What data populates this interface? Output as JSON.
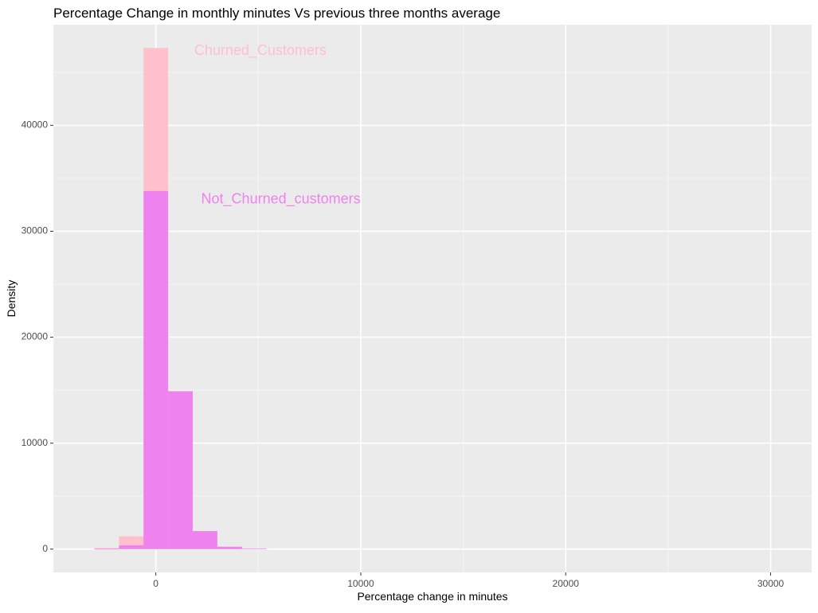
{
  "chart_data": {
    "type": "bar",
    "title": "Percentage Change in monthly minutes Vs previous three months average",
    "xlabel": "Percentage change in minutes",
    "ylabel": "Density",
    "xlim": [
      -5000,
      32000
    ],
    "ylim": [
      -2200,
      49500
    ],
    "x_ticks": [
      0,
      10000,
      20000,
      30000
    ],
    "x_tick_labels": [
      "0",
      "10000",
      "20000",
      "30000"
    ],
    "y_ticks": [
      0,
      10000,
      20000,
      30000,
      40000
    ],
    "y_tick_labels": [
      "0",
      "10000",
      "20000",
      "30000",
      "40000"
    ],
    "grid": true,
    "colors": {
      "panel": "#ebebeb",
      "grid_major": "#ffffff",
      "grid_minor": "#f5f5f5",
      "churned": "#ffc0cb",
      "not_churned": "#ee82ee",
      "axis_text": "#4d4d4d",
      "title": "#000000"
    },
    "series": [
      {
        "name": "Churned_Customers",
        "color": "#ffc0cb",
        "bin_start": [
          -3000,
          -1800,
          -600,
          600,
          1800,
          3000
        ],
        "bin_end": [
          -1800,
          -600,
          600,
          1800,
          3000,
          4200
        ],
        "values": [
          100,
          1200,
          47300,
          14900,
          1700,
          180
        ]
      },
      {
        "name": "Not_Churned_customers",
        "color": "#ee82ee",
        "bin_start": [
          -3000,
          -1800,
          -600,
          600,
          1800,
          3000,
          4200
        ],
        "bin_end": [
          -1800,
          -600,
          600,
          1800,
          3000,
          4200,
          5400
        ],
        "values": [
          30,
          350,
          33800,
          14900,
          1700,
          220,
          60
        ]
      }
    ],
    "annotations": [
      {
        "text": "Churned_Customers",
        "x": 5100,
        "y": 47000,
        "color": "#ffc0cb"
      },
      {
        "text": "Not_Churned_customers",
        "x": 6100,
        "y": 33000,
        "color": "#ee82ee"
      }
    ]
  }
}
